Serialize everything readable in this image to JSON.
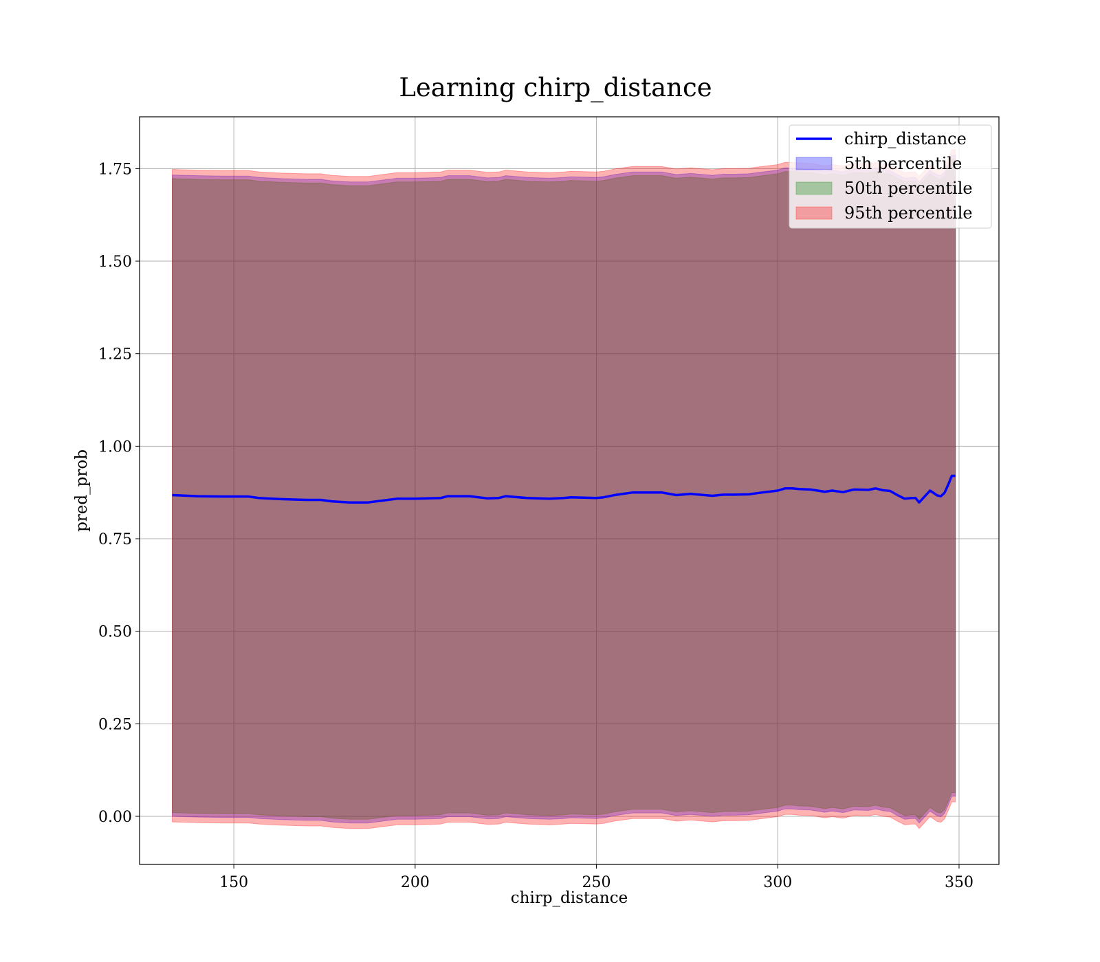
{
  "chart_data": {
    "type": "area",
    "title": "Learning chirp_distance",
    "xlabel": "chirp_distance",
    "ylabel": "pred_prob",
    "xlim": [
      124,
      361
    ],
    "ylim": [
      -0.13,
      1.89
    ],
    "xticks": [
      150,
      200,
      250,
      300,
      350
    ],
    "xtick_labels": [
      "150",
      "200",
      "250",
      "300",
      "350"
    ],
    "yticks": [
      0.0,
      0.25,
      0.5,
      0.75,
      1.0,
      1.25,
      1.5,
      1.75
    ],
    "ytick_labels": [
      "0.00",
      "0.25",
      "0.50",
      "0.75",
      "1.00",
      "1.25",
      "1.50",
      "1.75"
    ],
    "grid": true,
    "legend_position": "top-right",
    "x": [
      133,
      140,
      147,
      154,
      157,
      163,
      170,
      174,
      177,
      182,
      187,
      191,
      195,
      200,
      207,
      209,
      215,
      220,
      223,
      225,
      231,
      237,
      241,
      243,
      250,
      252,
      255,
      260,
      268,
      272,
      276,
      282,
      285,
      288,
      292,
      295,
      300,
      302,
      304,
      306,
      309,
      313,
      315,
      318,
      321,
      325,
      327,
      329,
      331,
      333,
      335,
      337,
      338,
      339,
      342,
      344,
      345,
      346,
      347,
      348,
      349
    ],
    "series": [
      {
        "name": "chirp_distance",
        "kind": "line",
        "color": "#0000ff",
        "values": [
          0.868,
          0.865,
          0.864,
          0.864,
          0.86,
          0.857,
          0.855,
          0.855,
          0.851,
          0.848,
          0.848,
          0.853,
          0.858,
          0.858,
          0.86,
          0.865,
          0.865,
          0.859,
          0.86,
          0.865,
          0.86,
          0.858,
          0.86,
          0.862,
          0.86,
          0.862,
          0.868,
          0.875,
          0.875,
          0.868,
          0.871,
          0.866,
          0.869,
          0.869,
          0.87,
          0.874,
          0.88,
          0.886,
          0.886,
          0.884,
          0.883,
          0.877,
          0.88,
          0.876,
          0.883,
          0.882,
          0.886,
          0.881,
          0.879,
          0.868,
          0.858,
          0.86,
          0.86,
          0.848,
          0.88,
          0.867,
          0.865,
          0.874,
          0.896,
          0.92,
          0.92
        ]
      },
      {
        "name": "5th percentile",
        "kind": "band",
        "color": "#0000ff",
        "lower": [
          0.0,
          -0.002,
          -0.003,
          -0.003,
          -0.006,
          -0.009,
          -0.011,
          -0.011,
          -0.015,
          -0.018,
          -0.018,
          -0.013,
          -0.008,
          -0.008,
          -0.006,
          -0.001,
          -0.001,
          -0.007,
          -0.006,
          -0.001,
          -0.006,
          -0.008,
          -0.006,
          -0.004,
          -0.006,
          -0.004,
          0.002,
          0.009,
          0.009,
          0.002,
          0.005,
          0.0,
          0.003,
          0.003,
          0.004,
          0.008,
          0.014,
          0.02,
          0.02,
          0.018,
          0.017,
          0.011,
          0.014,
          0.01,
          0.017,
          0.016,
          0.02,
          0.015,
          0.013,
          0.002,
          -0.008,
          -0.006,
          -0.006,
          -0.018,
          0.014,
          0.001,
          -0.001,
          0.008,
          0.03,
          0.054,
          0.054
        ],
        "upper": [
          1.733,
          1.731,
          1.73,
          1.73,
          1.726,
          1.723,
          1.721,
          1.721,
          1.717,
          1.714,
          1.714,
          1.719,
          1.724,
          1.724,
          1.726,
          1.731,
          1.731,
          1.725,
          1.726,
          1.731,
          1.726,
          1.724,
          1.726,
          1.728,
          1.726,
          1.728,
          1.734,
          1.741,
          1.741,
          1.734,
          1.737,
          1.732,
          1.735,
          1.735,
          1.736,
          1.74,
          1.746,
          1.752,
          1.752,
          1.75,
          1.749,
          1.743,
          1.746,
          1.742,
          1.749,
          1.748,
          1.752,
          1.747,
          1.745,
          1.734,
          1.724,
          1.726,
          1.726,
          1.714,
          1.746,
          1.733,
          1.731,
          1.74,
          1.762,
          1.786,
          1.786
        ]
      },
      {
        "name": "50th percentile",
        "kind": "band",
        "color": "#008000",
        "lower": [
          0.01,
          0.008,
          0.007,
          0.007,
          0.004,
          0.001,
          -0.001,
          -0.001,
          -0.005,
          -0.008,
          -0.008,
          -0.003,
          0.002,
          0.002,
          0.004,
          0.009,
          0.009,
          0.003,
          0.004,
          0.009,
          0.004,
          0.002,
          0.004,
          0.006,
          0.004,
          0.006,
          0.012,
          0.019,
          0.019,
          0.012,
          0.015,
          0.01,
          0.013,
          0.013,
          0.014,
          0.018,
          0.024,
          0.03,
          0.03,
          0.028,
          0.027,
          0.021,
          0.024,
          0.02,
          0.027,
          0.026,
          0.03,
          0.025,
          0.023,
          0.012,
          0.002,
          0.004,
          0.004,
          -0.008,
          0.024,
          0.011,
          0.009,
          0.018,
          0.04,
          0.064,
          0.064
        ],
        "upper": [
          1.723,
          1.721,
          1.72,
          1.72,
          1.716,
          1.713,
          1.711,
          1.711,
          1.707,
          1.704,
          1.704,
          1.709,
          1.714,
          1.714,
          1.716,
          1.721,
          1.721,
          1.715,
          1.716,
          1.721,
          1.716,
          1.714,
          1.716,
          1.718,
          1.716,
          1.718,
          1.724,
          1.731,
          1.731,
          1.724,
          1.727,
          1.722,
          1.725,
          1.725,
          1.726,
          1.73,
          1.736,
          1.742,
          1.742,
          1.74,
          1.739,
          1.733,
          1.736,
          1.732,
          1.739,
          1.738,
          1.742,
          1.737,
          1.735,
          1.724,
          1.714,
          1.716,
          1.716,
          1.704,
          1.736,
          1.723,
          1.721,
          1.73,
          1.752,
          1.776,
          1.776
        ]
      },
      {
        "name": "95th percentile",
        "kind": "band",
        "color": "#ff0000",
        "lower": [
          -0.015,
          -0.017,
          -0.018,
          -0.018,
          -0.021,
          -0.024,
          -0.026,
          -0.026,
          -0.03,
          -0.033,
          -0.033,
          -0.028,
          -0.023,
          -0.023,
          -0.021,
          -0.016,
          -0.016,
          -0.022,
          -0.021,
          -0.016,
          -0.021,
          -0.023,
          -0.021,
          -0.019,
          -0.021,
          -0.019,
          -0.013,
          -0.006,
          -0.006,
          -0.013,
          -0.01,
          -0.015,
          -0.012,
          -0.012,
          -0.011,
          -0.007,
          -0.001,
          0.005,
          0.005,
          0.003,
          0.002,
          -0.004,
          -0.001,
          -0.005,
          0.002,
          0.001,
          0.005,
          0.0,
          -0.002,
          -0.013,
          -0.023,
          -0.021,
          -0.021,
          -0.033,
          -0.001,
          -0.014,
          -0.016,
          -0.007,
          0.015,
          0.039,
          0.039
        ],
        "upper": [
          1.748,
          1.746,
          1.745,
          1.745,
          1.741,
          1.738,
          1.736,
          1.736,
          1.732,
          1.729,
          1.729,
          1.734,
          1.739,
          1.739,
          1.741,
          1.746,
          1.746,
          1.74,
          1.741,
          1.746,
          1.741,
          1.739,
          1.741,
          1.743,
          1.741,
          1.743,
          1.749,
          1.756,
          1.756,
          1.749,
          1.752,
          1.747,
          1.75,
          1.75,
          1.751,
          1.755,
          1.761,
          1.767,
          1.767,
          1.765,
          1.764,
          1.758,
          1.761,
          1.757,
          1.764,
          1.763,
          1.767,
          1.762,
          1.76,
          1.749,
          1.739,
          1.741,
          1.741,
          1.729,
          1.761,
          1.748,
          1.746,
          1.755,
          1.777,
          1.801,
          1.801
        ]
      }
    ]
  }
}
